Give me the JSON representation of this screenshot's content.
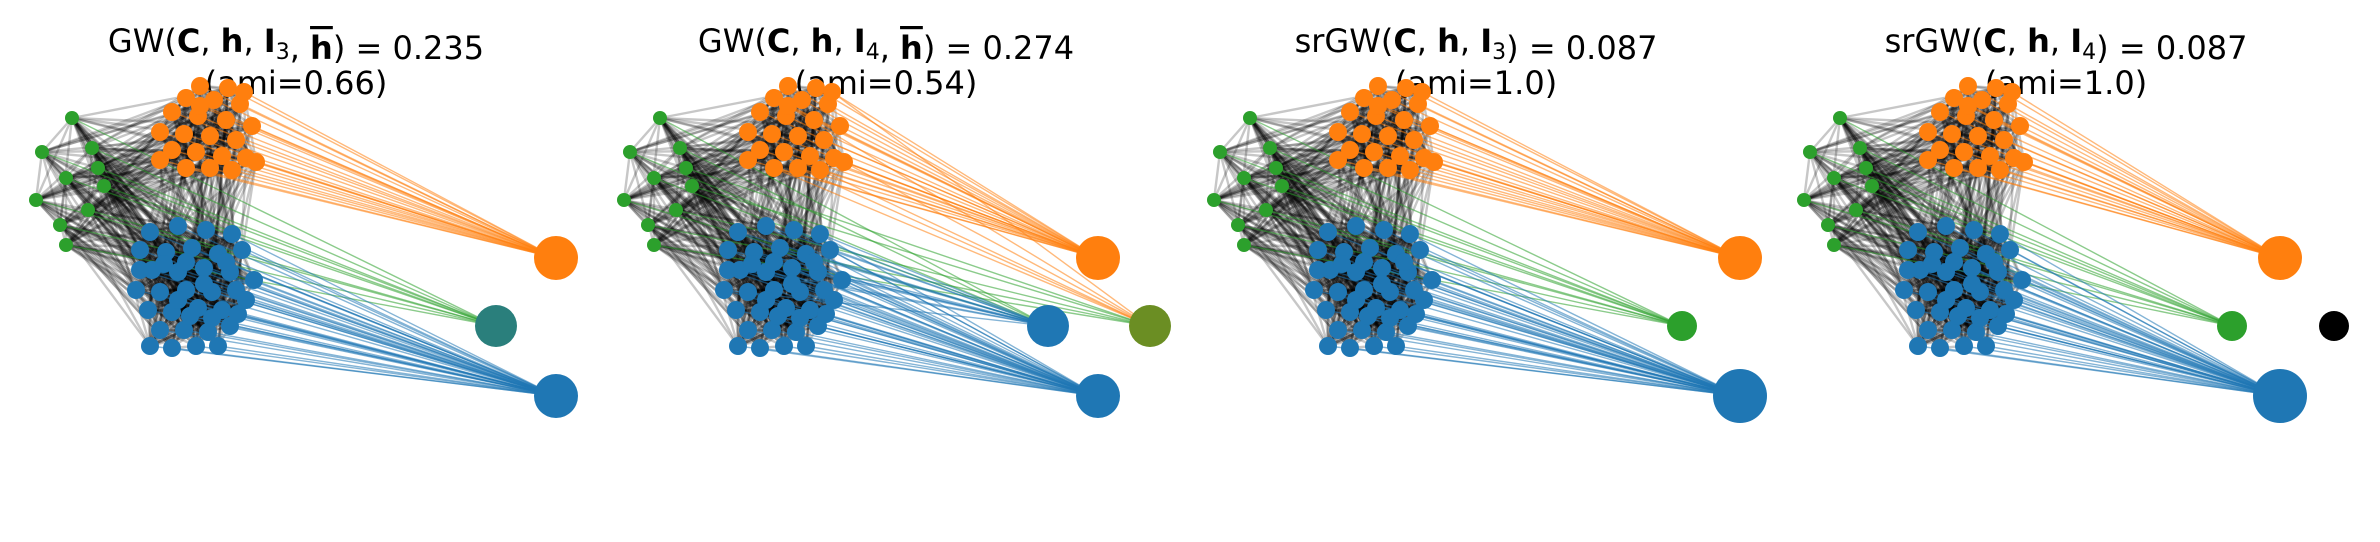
{
  "panels": [
    {
      "title": {
        "prefix": "GW(",
        "C": "C",
        "h": "h",
        "I": "I",
        "sub": "3",
        "hbar": "h",
        "suffix": ") = 0.235"
      },
      "subtitle": "(ami=0.66)",
      "cluster_nodes": [
        {
          "id": "orange",
          "color": "#ff7f0e",
          "size": "large"
        },
        {
          "id": "green",
          "color": "#2a7f7c",
          "size": "medium"
        },
        {
          "id": "blue",
          "color": "#1f77b4",
          "size": "large"
        }
      ]
    },
    {
      "title": {
        "prefix": "GW(",
        "C": "C",
        "h": "h",
        "I": "I",
        "sub": "4",
        "hbar": "h",
        "suffix": ") = 0.274"
      },
      "subtitle": "(ami=0.54)",
      "cluster_nodes": [
        {
          "id": "orange",
          "color": "#ff7f0e",
          "size": "large"
        },
        {
          "id": "teal",
          "color": "#1f77b4",
          "size": "medium"
        },
        {
          "id": "olive",
          "color": "#6b8e23",
          "size": "medium"
        },
        {
          "id": "blue",
          "color": "#1f77b4",
          "size": "large"
        }
      ]
    },
    {
      "title": {
        "prefix": "srGW(",
        "C": "C",
        "h": "h",
        "I": "I",
        "sub": "3",
        "suffix": ") = 0.087"
      },
      "subtitle": "(ami=1.0)",
      "cluster_nodes": [
        {
          "id": "orange",
          "color": "#ff7f0e",
          "size": "large"
        },
        {
          "id": "green",
          "color": "#2ca02c",
          "size": "small"
        },
        {
          "id": "blue",
          "color": "#1f77b4",
          "size": "xlarge"
        }
      ]
    },
    {
      "title": {
        "prefix": "srGW(",
        "C": "C",
        "h": "h",
        "I": "I",
        "sub": "4",
        "suffix": ") = 0.087"
      },
      "subtitle": "(ami=1.0)",
      "cluster_nodes": [
        {
          "id": "orange",
          "color": "#ff7f0e",
          "size": "large"
        },
        {
          "id": "green",
          "color": "#2ca02c",
          "size": "small"
        },
        {
          "id": "black",
          "color": "#000000",
          "size": "small"
        },
        {
          "id": "blue",
          "color": "#1f77b4",
          "size": "xlarge"
        }
      ]
    }
  ],
  "colors": {
    "orange": "#ff7f0e",
    "green": "#2ca02c",
    "blue": "#1f77b4",
    "edge": "#000000"
  }
}
